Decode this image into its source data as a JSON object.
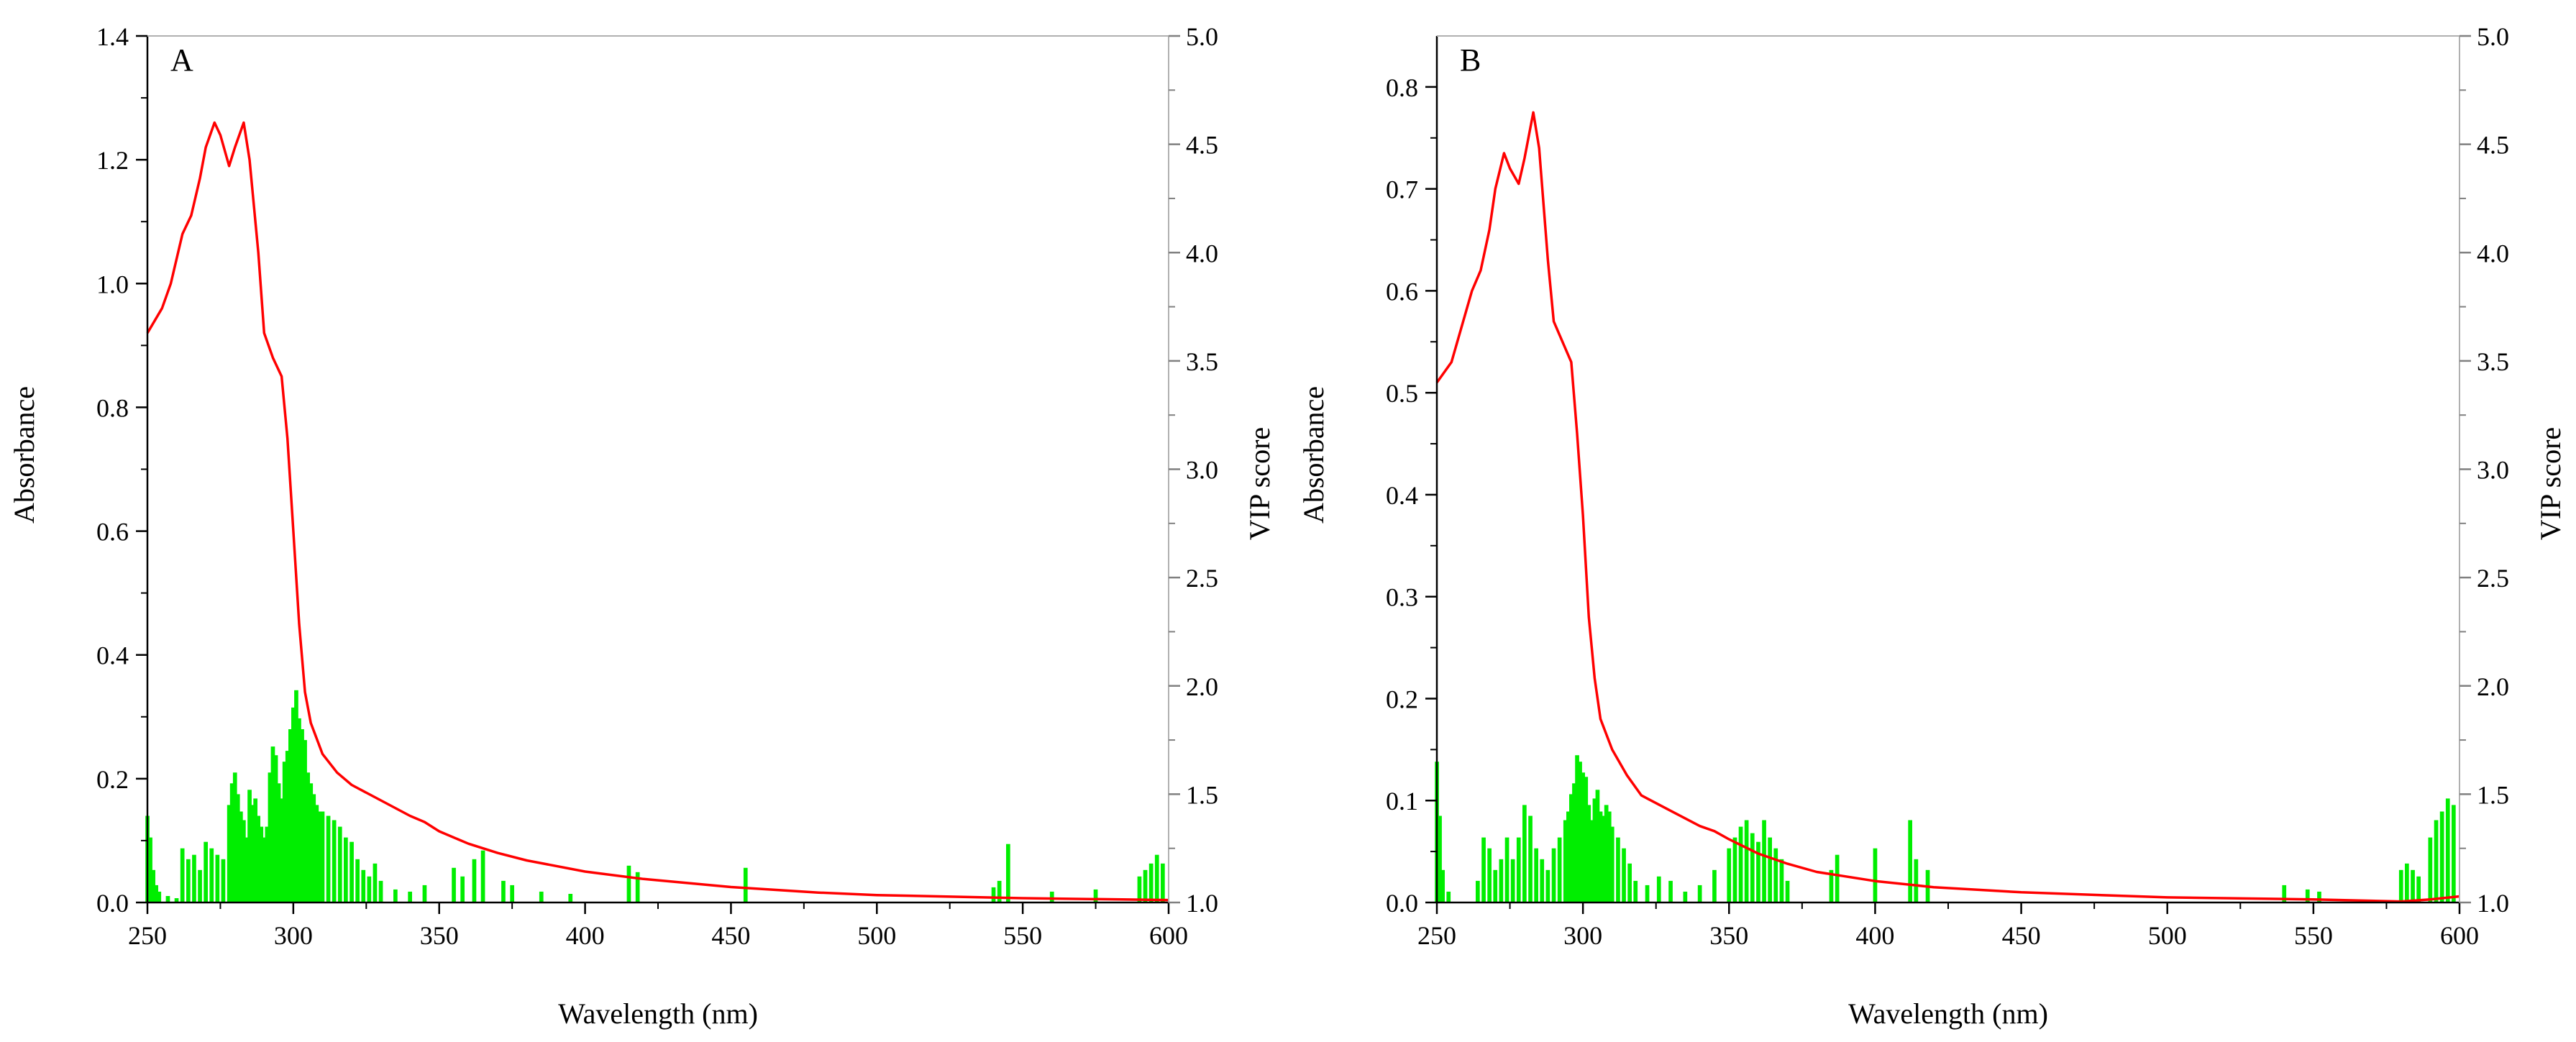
{
  "colors": {
    "absorbance_line": "#ff0000",
    "vip_bars": "#00ee00",
    "axes": "#000000"
  },
  "chart_data": [
    {
      "panel_label": "A",
      "type": "line+bar",
      "xlabel": "Wavelength (nm)",
      "ylabel_left": "Absorbance",
      "ylabel_right": "VIP score",
      "xlim": [
        250,
        600
      ],
      "ylim_left": [
        0,
        1.4
      ],
      "ylim_right": [
        1.0,
        5.0
      ],
      "x_ticks": [
        250,
        300,
        350,
        400,
        450,
        500,
        550,
        600
      ],
      "x_tick_labels": [
        "250",
        "300",
        "350",
        "400",
        "450",
        "500",
        "550",
        "600"
      ],
      "y_left_ticks": [
        0.0,
        0.2,
        0.4,
        0.6,
        0.8,
        1.0,
        1.2,
        1.4
      ],
      "y_left_tick_labels": [
        "0.0",
        "0.2",
        "0.4",
        "0.6",
        "0.8",
        "1.0",
        "1.2",
        "1.4"
      ],
      "y_right_ticks": [
        1.0,
        1.5,
        2.0,
        2.5,
        3.0,
        3.5,
        4.0,
        4.5,
        5.0
      ],
      "y_right_tick_labels": [
        "1.0",
        "1.5",
        "2.0",
        "2.5",
        "3.0",
        "3.5",
        "4.0",
        "4.5",
        "5.0"
      ],
      "grid": false,
      "absorbance": {
        "x": [
          250,
          255,
          258,
          262,
          265,
          268,
          270,
          273,
          275,
          278,
          280,
          283,
          285,
          288,
          290,
          293,
          296,
          298,
          300,
          302,
          304,
          306,
          310,
          315,
          320,
          330,
          340,
          345,
          350,
          360,
          370,
          380,
          400,
          420,
          450,
          480,
          500,
          550,
          600
        ],
        "y": [
          0.92,
          0.96,
          1.0,
          1.08,
          1.11,
          1.17,
          1.22,
          1.26,
          1.24,
          1.19,
          1.22,
          1.26,
          1.2,
          1.05,
          0.92,
          0.88,
          0.85,
          0.75,
          0.6,
          0.45,
          0.34,
          0.29,
          0.24,
          0.21,
          0.19,
          0.165,
          0.14,
          0.13,
          0.115,
          0.095,
          0.08,
          0.068,
          0.05,
          0.038,
          0.025,
          0.016,
          0.012,
          0.007,
          0.004
        ]
      },
      "vip": {
        "x": [
          250,
          251,
          252,
          253,
          254,
          257,
          260,
          262,
          264,
          266,
          268,
          270,
          272,
          274,
          276,
          278,
          279,
          280,
          281,
          282,
          283,
          284,
          285,
          286,
          287,
          288,
          289,
          290,
          291,
          292,
          293,
          294,
          295,
          296,
          297,
          298,
          299,
          300,
          301,
          302,
          303,
          304,
          305,
          306,
          307,
          308,
          309,
          310,
          312,
          314,
          316,
          318,
          320,
          322,
          324,
          326,
          328,
          330,
          335,
          340,
          345,
          355,
          358,
          362,
          365,
          372,
          375,
          385,
          395,
          415,
          418,
          455,
          540,
          542,
          545,
          560,
          575,
          590,
          592,
          594,
          596,
          598
        ],
        "y": [
          1.4,
          1.3,
          1.15,
          1.08,
          1.05,
          1.03,
          1.02,
          1.25,
          1.2,
          1.22,
          1.15,
          1.28,
          1.25,
          1.22,
          1.2,
          1.45,
          1.55,
          1.6,
          1.5,
          1.42,
          1.38,
          1.3,
          1.52,
          1.45,
          1.48,
          1.4,
          1.35,
          1.3,
          1.35,
          1.6,
          1.72,
          1.68,
          1.55,
          1.48,
          1.65,
          1.7,
          1.8,
          1.9,
          1.98,
          1.85,
          1.8,
          1.75,
          1.6,
          1.55,
          1.5,
          1.45,
          1.42,
          1.42,
          1.4,
          1.38,
          1.35,
          1.3,
          1.28,
          1.2,
          1.15,
          1.12,
          1.18,
          1.1,
          1.06,
          1.05,
          1.08,
          1.16,
          1.12,
          1.2,
          1.24,
          1.1,
          1.08,
          1.05,
          1.04,
          1.17,
          1.14,
          1.16,
          1.07,
          1.1,
          1.27,
          1.05,
          1.06,
          1.12,
          1.15,
          1.18,
          1.22,
          1.18
        ]
      }
    },
    {
      "panel_label": "B",
      "type": "line+bar",
      "xlabel": "Wavelength (nm)",
      "ylabel_left": "Absorbance",
      "ylabel_right": "VIP score",
      "xlim": [
        250,
        600
      ],
      "ylim_left": [
        0,
        0.85
      ],
      "ylim_right": [
        1.0,
        5.0
      ],
      "x_ticks": [
        250,
        300,
        350,
        400,
        450,
        500,
        550,
        600
      ],
      "x_tick_labels": [
        "250",
        "300",
        "350",
        "400",
        "450",
        "500",
        "550",
        "600"
      ],
      "y_left_ticks": [
        0.0,
        0.1,
        0.2,
        0.3,
        0.4,
        0.5,
        0.6,
        0.7,
        0.8
      ],
      "y_left_tick_labels": [
        "0.0",
        "0.1",
        "0.2",
        "0.3",
        "0.4",
        "0.5",
        "0.6",
        "0.7",
        "0.8"
      ],
      "y_right_ticks": [
        1.0,
        1.5,
        2.0,
        2.5,
        3.0,
        3.5,
        4.0,
        4.5,
        5.0
      ],
      "y_right_tick_labels": [
        "1.0",
        "1.5",
        "2.0",
        "2.5",
        "3.0",
        "3.5",
        "4.0",
        "4.5",
        "5.0"
      ],
      "grid": false,
      "absorbance": {
        "x": [
          250,
          255,
          258,
          262,
          265,
          268,
          270,
          273,
          275,
          278,
          280,
          283,
          285,
          288,
          290,
          293,
          296,
          298,
          300,
          302,
          304,
          306,
          310,
          315,
          320,
          330,
          340,
          345,
          350,
          360,
          370,
          380,
          400,
          420,
          450,
          480,
          500,
          550,
          580,
          590,
          600
        ],
        "y": [
          0.51,
          0.53,
          0.56,
          0.6,
          0.62,
          0.66,
          0.7,
          0.735,
          0.72,
          0.705,
          0.73,
          0.775,
          0.74,
          0.63,
          0.57,
          0.55,
          0.53,
          0.46,
          0.38,
          0.28,
          0.22,
          0.18,
          0.15,
          0.125,
          0.105,
          0.09,
          0.075,
          0.07,
          0.062,
          0.048,
          0.038,
          0.03,
          0.021,
          0.015,
          0.01,
          0.007,
          0.005,
          0.003,
          0.001,
          0.003,
          0.006
        ]
      },
      "vip": {
        "x": [
          250,
          251,
          252,
          254,
          264,
          266,
          268,
          270,
          272,
          274,
          276,
          278,
          280,
          282,
          284,
          286,
          288,
          290,
          292,
          294,
          295,
          296,
          297,
          298,
          299,
          300,
          301,
          302,
          303,
          304,
          305,
          306,
          307,
          308,
          309,
          310,
          312,
          314,
          316,
          318,
          322,
          326,
          330,
          335,
          340,
          345,
          350,
          352,
          354,
          356,
          358,
          360,
          362,
          364,
          366,
          368,
          370,
          385,
          387,
          400,
          412,
          414,
          418,
          540,
          548,
          552,
          580,
          582,
          584,
          586,
          590,
          592,
          594,
          596,
          598
        ],
        "y": [
          1.65,
          1.4,
          1.15,
          1.05,
          1.1,
          1.3,
          1.25,
          1.15,
          1.2,
          1.3,
          1.2,
          1.3,
          1.45,
          1.4,
          1.25,
          1.2,
          1.15,
          1.25,
          1.3,
          1.38,
          1.42,
          1.5,
          1.55,
          1.68,
          1.65,
          1.6,
          1.58,
          1.45,
          1.38,
          1.48,
          1.52,
          1.42,
          1.4,
          1.45,
          1.42,
          1.35,
          1.3,
          1.25,
          1.18,
          1.1,
          1.08,
          1.12,
          1.1,
          1.05,
          1.08,
          1.15,
          1.25,
          1.3,
          1.35,
          1.38,
          1.32,
          1.28,
          1.38,
          1.3,
          1.25,
          1.2,
          1.1,
          1.15,
          1.22,
          1.25,
          1.38,
          1.2,
          1.15,
          1.08,
          1.06,
          1.05,
          1.15,
          1.18,
          1.15,
          1.12,
          1.3,
          1.38,
          1.42,
          1.48,
          1.45
        ]
      }
    }
  ]
}
